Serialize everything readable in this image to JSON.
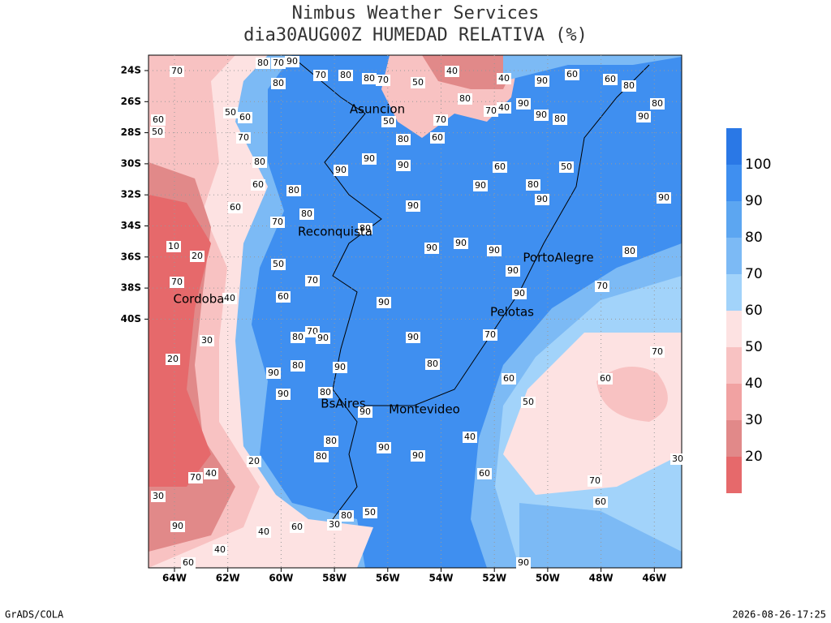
{
  "header": {
    "title": "Nimbus Weather Services",
    "subtitle": "dia30AUG00Z HUMEDAD RELATIVA (%)"
  },
  "map": {
    "lat_labels": [
      "24S",
      "26S",
      "28S",
      "30S",
      "32S",
      "34S",
      "36S",
      "38S",
      "40S"
    ],
    "lon_labels": [
      "64W",
      "62W",
      "60W",
      "58W",
      "56W",
      "54W",
      "52W",
      "50W",
      "48W",
      "46W"
    ],
    "cities": [
      "Asuncion",
      "Reconquista",
      "Cordoba",
      "PortoAlegre",
      "Pelotas",
      "BsAires",
      "Montevideo"
    ],
    "contour_labels": [
      70,
      80,
      70,
      90,
      80,
      70,
      80,
      80,
      70,
      50,
      40,
      40,
      80,
      70,
      40,
      90,
      90,
      60,
      60,
      80,
      80,
      90,
      80,
      90,
      50,
      60,
      70,
      60,
      50,
      80,
      60,
      60,
      70,
      80,
      80,
      90,
      90,
      90,
      60,
      80,
      50,
      70,
      60,
      90,
      80,
      90,
      50,
      90,
      80,
      90,
      90,
      90,
      10,
      20,
      50,
      70,
      60,
      70,
      40,
      30,
      20,
      90,
      90,
      90,
      70,
      80,
      90,
      70,
      80,
      70,
      90,
      80,
      90,
      90,
      80,
      90,
      90,
      80,
      60,
      50,
      60,
      70,
      90,
      80,
      80,
      90,
      90,
      40,
      20,
      40,
      70,
      60,
      70,
      60,
      30,
      30,
      90,
      80,
      50,
      60,
      30,
      40,
      40,
      60,
      90
    ]
  },
  "legend": {
    "levels": [
      20,
      30,
      40,
      50,
      60,
      70,
      80,
      90,
      100
    ],
    "colors": [
      "#e6696b",
      "#e18989",
      "#f1a2a2",
      "#f8c2c2",
      "#fde2e2",
      "#a2d3fa",
      "#7cbaf5",
      "#5ca6f1",
      "#3f8ff0",
      "#2a78e6"
    ]
  },
  "footer": {
    "left": "GrADS/COLA",
    "right": "2026-08-26-17:25"
  }
}
